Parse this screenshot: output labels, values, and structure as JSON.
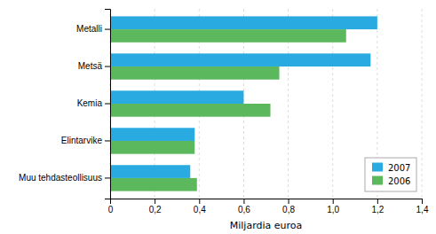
{
  "chart_data": {
    "type": "bar",
    "orientation": "horizontal",
    "categories": [
      "Muu tehdasteollisuus",
      "Elintarvike",
      "Kemia",
      "Metsä",
      "Metalli"
    ],
    "series": [
      {
        "name": "2007",
        "color": "#29ABE2",
        "values": [
          0.36,
          0.38,
          0.6,
          1.17,
          1.2
        ]
      },
      {
        "name": "2006",
        "color": "#5CB85C",
        "values": [
          0.39,
          0.38,
          0.72,
          0.76,
          1.06
        ]
      }
    ],
    "x_label": "Miljardia euroa",
    "xlim": [
      0,
      1.4
    ],
    "xticks": [
      0,
      {
        "value": 0.2,
        "label": "0,2"
      },
      {
        "value": 0.4,
        "label": "0,4"
      },
      {
        "value": 0.6,
        "label": "0,6"
      },
      {
        "value": 0.8,
        "label": "0,8"
      },
      {
        "value": 1.0,
        "label": "1,0"
      },
      {
        "value": 1.2,
        "label": "1,2"
      },
      {
        "value": 1.4,
        "label": "1,4"
      }
    ],
    "grid": true,
    "legend": "lower right"
  }
}
